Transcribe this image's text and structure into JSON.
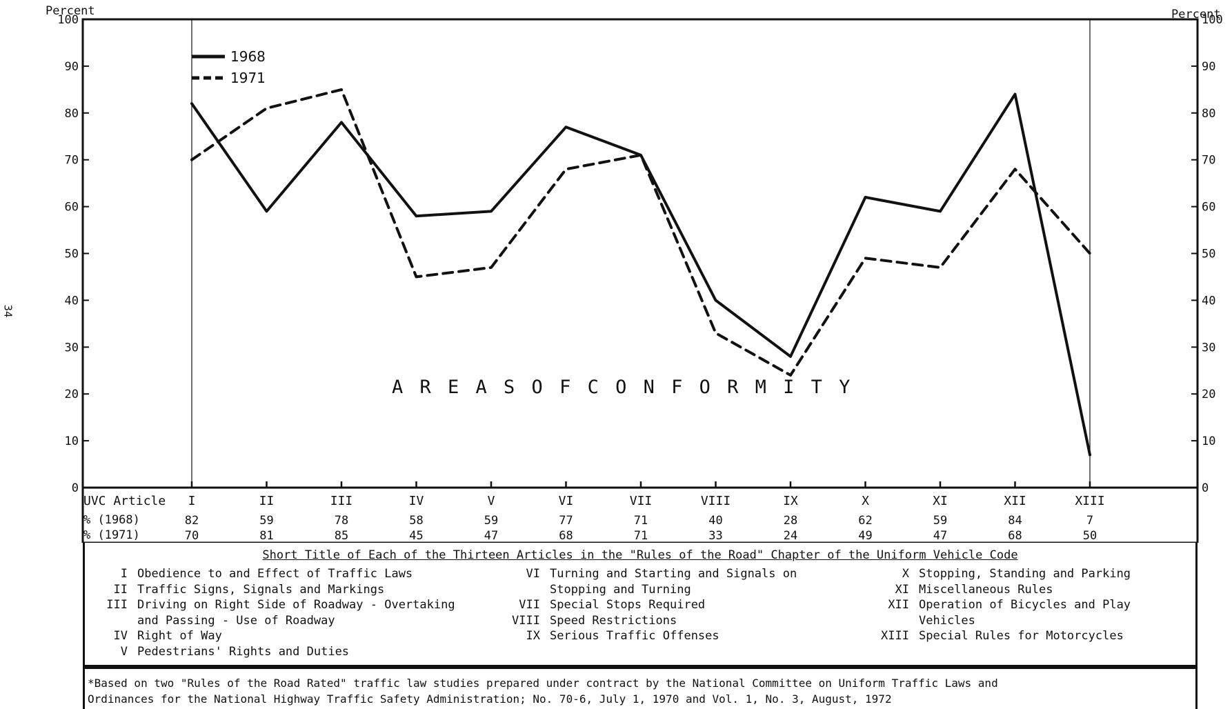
{
  "page_number": "34",
  "chart_data": {
    "type": "line",
    "yaxis_label_left": "Percent",
    "yaxis_label_right": "Percent",
    "ylim": [
      0,
      100
    ],
    "yticks": [
      0,
      10,
      20,
      30,
      40,
      50,
      60,
      70,
      80,
      90,
      100
    ],
    "annotation": "A R E A S   O F   C O N F O R M I T Y",
    "legend_placement": "top-left",
    "categories": [
      "I",
      "II",
      "III",
      "IV",
      "V",
      "VI",
      "VII",
      "VIII",
      "IX",
      "X",
      "XI",
      "XII",
      "XIII"
    ],
    "series": [
      {
        "name": "1968",
        "style": "solid",
        "values": [
          82,
          59,
          78,
          58,
          59,
          77,
          71,
          40,
          28,
          62,
          59,
          84,
          7
        ]
      },
      {
        "name": "1971",
        "style": "dashed",
        "values": [
          70,
          81,
          85,
          45,
          47,
          68,
          71,
          33,
          24,
          49,
          47,
          68,
          50
        ]
      }
    ]
  },
  "data_table": {
    "header_label": "UVC Article",
    "row1968_label": "% (1968)",
    "row1971_label": "% (1971)",
    "row1968_values": [
      "82",
      "59",
      "78",
      "58",
      "59",
      "77",
      "71",
      "40",
      "28",
      "62",
      "59",
      "84",
      "7"
    ],
    "row1971_values": [
      "70",
      "81",
      "85",
      "45",
      "47",
      "68",
      "71",
      "33",
      "24",
      "49",
      "47",
      "68",
      "50"
    ]
  },
  "legend": {
    "title": "Short Title of Each of the Thirteen Articles in the \"Rules of the Road\" Chapter of the Uniform Vehicle Code",
    "columns": [
      [
        {
          "num": "I",
          "text": "Obedience to and Effect of Traffic Laws"
        },
        {
          "num": "II",
          "text": "Traffic Signs, Signals and Markings"
        },
        {
          "num": "III",
          "text": "Driving on Right Side of Roadway - Overtaking"
        },
        {
          "num": "",
          "text": "and Passing - Use of Roadway"
        },
        {
          "num": "IV",
          "text": "Right of Way"
        },
        {
          "num": "V",
          "text": "Pedestrians' Rights and Duties"
        }
      ],
      [
        {
          "num": "VI",
          "text": "Turning and Starting and Signals on"
        },
        {
          "num": "",
          "text": "Stopping and Turning"
        },
        {
          "num": "VII",
          "text": "Special Stops Required"
        },
        {
          "num": "VIII",
          "text": "Speed Restrictions"
        },
        {
          "num": "IX",
          "text": "Serious Traffic Offenses"
        }
      ],
      [
        {
          "num": "X",
          "text": "Stopping, Standing and Parking"
        },
        {
          "num": "XI",
          "text": "Miscellaneous Rules"
        },
        {
          "num": "XII",
          "text": "Operation of Bicycles and Play"
        },
        {
          "num": "",
          "text": "Vehicles"
        },
        {
          "num": "XIII",
          "text": "Special Rules for Motorcycles"
        }
      ]
    ]
  },
  "footnote": {
    "line1": "*Based on two \"Rules of the Road Rated\" traffic law studies prepared under contract by the National Committee on Uniform Traffic Laws and",
    "line2": "Ordinances for the National Highway Traffic Safety Administration; No. 70-6, July 1, 1970 and Vol. 1, No. 3, August, 1972"
  }
}
